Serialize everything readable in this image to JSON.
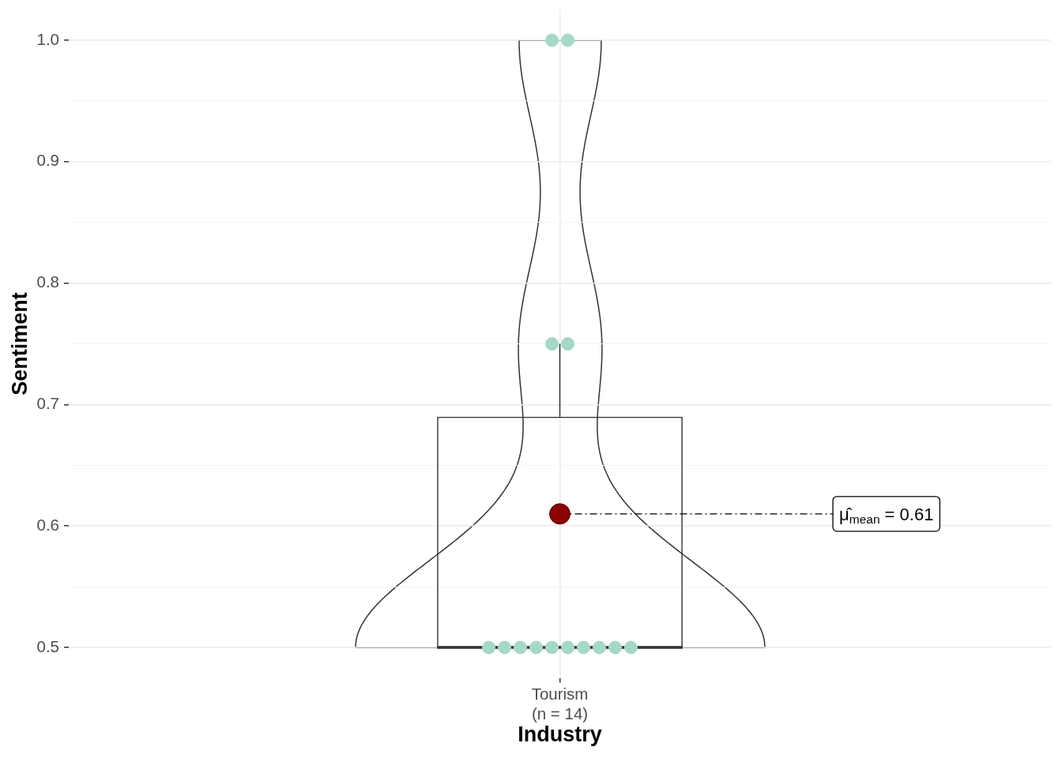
{
  "chart_data": {
    "type": "box",
    "xlabel": "Industry",
    "ylabel": "Sentiment",
    "categories": [
      "Tourism\n(n = 14)"
    ],
    "series": [
      {
        "type": "box",
        "color": "#333333",
        "boxes": [
          {
            "low": 0.5,
            "q1": 0.5,
            "median": 0.5,
            "q3": 0.69,
            "high": 0.75,
            "mean": 0.61
          }
        ]
      },
      {
        "type": "scatter",
        "color": "#a4d8c9",
        "x": [
          "Tourism\n(n = 14)",
          "Tourism\n(n = 14)",
          "Tourism\n(n = 14)",
          "Tourism\n(n = 14)",
          "Tourism\n(n = 14)",
          "Tourism\n(n = 14)",
          "Tourism\n(n = 14)",
          "Tourism\n(n = 14)",
          "Tourism\n(n = 14)",
          "Tourism\n(n = 14)",
          "Tourism\n(n = 14)",
          "Tourism\n(n = 14)",
          "Tourism\n(n = 14)",
          "Tourism\n(n = 14)"
        ],
        "values": [
          1,
          1,
          0.75,
          0.75,
          0.5,
          0.5,
          0.5,
          0.5,
          0.5,
          0.5,
          0.5,
          0.5,
          0.5,
          0.5
        ]
      }
    ],
    "ylim": [
      0.475,
      1.025
    ],
    "yticks": [
      0.5,
      {
        "value": 0.55,
        "label": null
      },
      0.6,
      {
        "value": 0.65,
        "label": null
      },
      0.7,
      {
        "value": 0.75,
        "label": null
      },
      0.8,
      {
        "value": 0.85,
        "label": null
      },
      0.9,
      {
        "value": 0.95,
        "label": null
      },
      {
        "value": 1,
        "label": "1.0"
      }
    ],
    "grid": true,
    "marker": "circle",
    "annotations": [
      "μ̂$_{mean}$ = 0.61"
    ]
  }
}
